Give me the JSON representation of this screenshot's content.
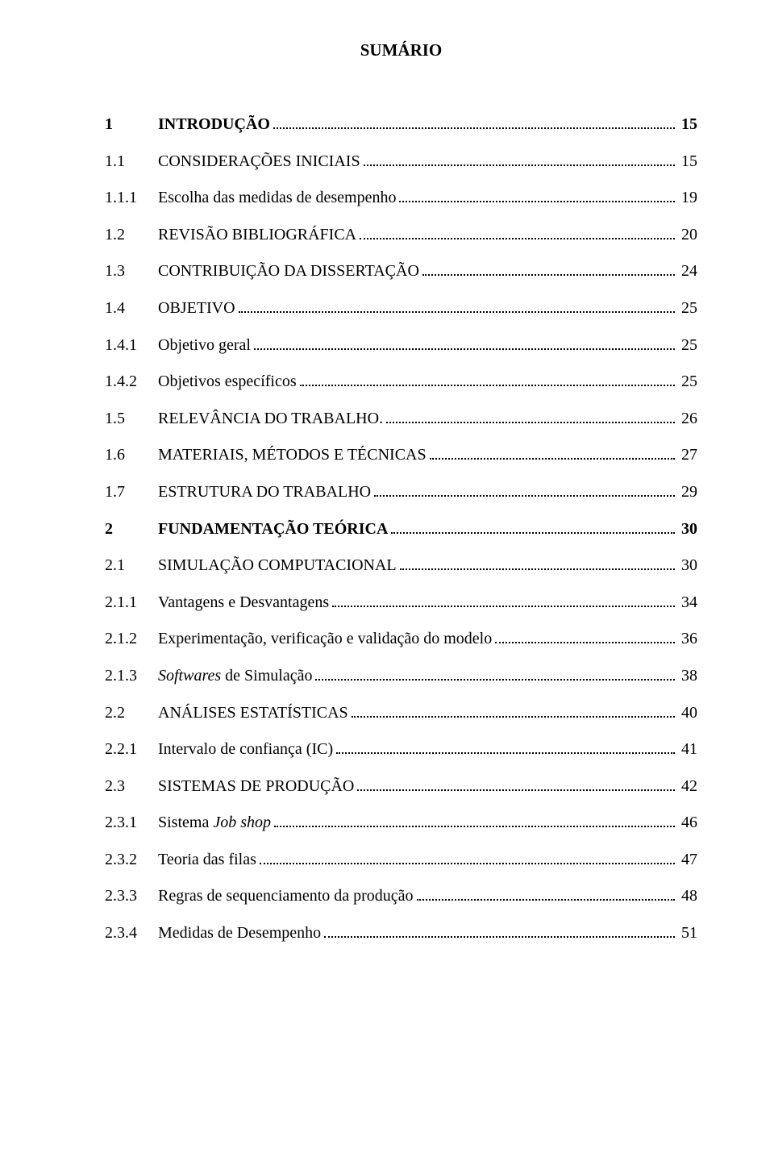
{
  "title": "SUMÁRIO",
  "toc": [
    {
      "num": "1",
      "label": "INTRODUÇÃO",
      "page": "15",
      "bold": true,
      "level": 1
    },
    {
      "num": "1.1",
      "label": "CONSIDERAÇÕES INICIAIS",
      "page": "15",
      "bold": false,
      "level": 2
    },
    {
      "num": "1.1.1",
      "label": "Escolha das medidas de desempenho",
      "page": "19",
      "bold": false,
      "level": 3
    },
    {
      "num": "1.2",
      "label": "REVISÃO BIBLIOGRÁFICA",
      "page": "20",
      "bold": false,
      "level": 2
    },
    {
      "num": "1.3",
      "label": "CONTRIBUIÇÃO DA DISSERTAÇÃO",
      "page": "24",
      "bold": false,
      "level": 2
    },
    {
      "num": "1.4",
      "label": "OBJETIVO",
      "page": "25",
      "bold": false,
      "level": 2
    },
    {
      "num": "1.4.1",
      "label": "Objetivo geral",
      "page": "25",
      "bold": false,
      "level": 3
    },
    {
      "num": "1.4.2",
      "label": "Objetivos específicos",
      "page": "25",
      "bold": false,
      "level": 3
    },
    {
      "num": "1.5",
      "label": "RELEVÂNCIA DO TRABALHO.",
      "page": "26",
      "bold": false,
      "level": 2
    },
    {
      "num": "1.6",
      "label": "MATERIAIS, MÉTODOS E TÉCNICAS",
      "page": "27",
      "bold": false,
      "level": 2
    },
    {
      "num": "1.7",
      "label": "ESTRUTURA DO TRABALHO",
      "page": "29",
      "bold": false,
      "level": 2
    },
    {
      "num": "2",
      "label": "FUNDAMENTAÇÃO TEÓRICA",
      "page": "30",
      "bold": true,
      "level": 1
    },
    {
      "num": "2.1",
      "label": "SIMULAÇÃO COMPUTACIONAL",
      "page": "30",
      "bold": false,
      "level": 2
    },
    {
      "num": "2.1.1",
      "label": "Vantagens e Desvantagens",
      "page": "34",
      "bold": false,
      "level": 3
    },
    {
      "num": "2.1.2",
      "label": "Experimentação, verificação e validação do modelo",
      "page": "36",
      "bold": false,
      "level": 3
    },
    {
      "num": "2.1.3",
      "label_parts": [
        {
          "t": "Softwares",
          "i": true
        },
        {
          "t": " de Simulação",
          "i": false
        }
      ],
      "page": "38",
      "bold": false,
      "level": 3
    },
    {
      "num": "2.2",
      "label": "ANÁLISES ESTATÍSTICAS",
      "page": "40",
      "bold": false,
      "level": 2
    },
    {
      "num": "2.2.1",
      "label": "Intervalo de confiança (IC)",
      "page": "41",
      "bold": false,
      "level": 3
    },
    {
      "num": "2.3",
      "label": "SISTEMAS DE PRODUÇÃO",
      "page": "42",
      "bold": false,
      "level": 2
    },
    {
      "num": "2.3.1",
      "label_parts": [
        {
          "t": "Sistema ",
          "i": false
        },
        {
          "t": "Job shop",
          "i": true
        }
      ],
      "page": "46",
      "bold": false,
      "level": 3
    },
    {
      "num": "2.3.2",
      "label": "Teoria das filas",
      "page": "47",
      "bold": false,
      "level": 3
    },
    {
      "num": "2.3.3",
      "label": "Regras de sequenciamento da produção",
      "page": "48",
      "bold": false,
      "level": 3
    },
    {
      "num": "2.3.4",
      "label": "Medidas de Desempenho",
      "page": "51",
      "bold": false,
      "level": 3
    }
  ]
}
